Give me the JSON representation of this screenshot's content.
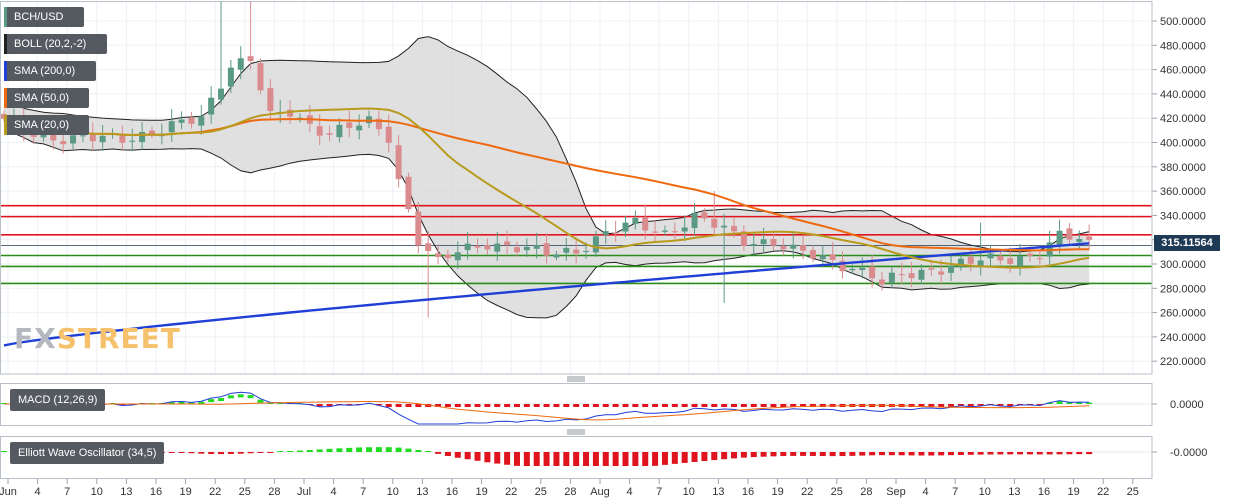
{
  "chart_data": {
    "type": "candlestick",
    "symbol": "BCH/USD",
    "y_ticks": [
      "500.0000",
      "480.0000",
      "460.0000",
      "440.0000",
      "420.0000",
      "400.0000",
      "380.0000",
      "360.0000",
      "340.0000",
      "320.0000",
      "300.0000",
      "280.0000",
      "260.0000",
      "240.0000",
      "220.0000"
    ],
    "ylim": [
      210,
      515
    ],
    "current_price": "315.11564",
    "x_ticks": [
      "Jun",
      "4",
      "7",
      "10",
      "13",
      "16",
      "19",
      "22",
      "25",
      "28",
      "Jul",
      "4",
      "7",
      "10",
      "13",
      "16",
      "19",
      "22",
      "25",
      "28",
      "Aug",
      "4",
      "7",
      "10",
      "13",
      "16",
      "19",
      "22",
      "25",
      "28",
      "Sep",
      "4",
      "7",
      "10",
      "13",
      "16",
      "19",
      "22",
      "25"
    ],
    "indicators": [
      {
        "label": "BOLL (20,2,-2)",
        "color": "#222222"
      },
      {
        "label": "SMA (200,0)",
        "color": "#1f3fd6"
      },
      {
        "label": "SMA (50,0)",
        "color": "#ee6a10"
      },
      {
        "label": "SMA (20,0)",
        "color": "#b89a1c"
      }
    ],
    "resistance_levels": [
      348,
      339,
      324
    ],
    "support_levels": [
      307,
      298,
      284
    ],
    "colors": {
      "up": "#5a9a84",
      "down": "#d98b8e",
      "sma200": "#1f3fd6",
      "sma50": "#ee6a10",
      "sma20": "#b89a1c",
      "resistance": "#e0141e",
      "support": "#2a8a1a",
      "band_fill": "#d5d5d5"
    },
    "macd": {
      "label": "MACD (12,26,9)",
      "tick": "0.0000"
    },
    "ewo": {
      "label": "Elliott Wave Oscillator (34,5)",
      "tick": "-0.0000"
    }
  },
  "watermark": {
    "fx": "FX",
    "street": "STREET"
  }
}
